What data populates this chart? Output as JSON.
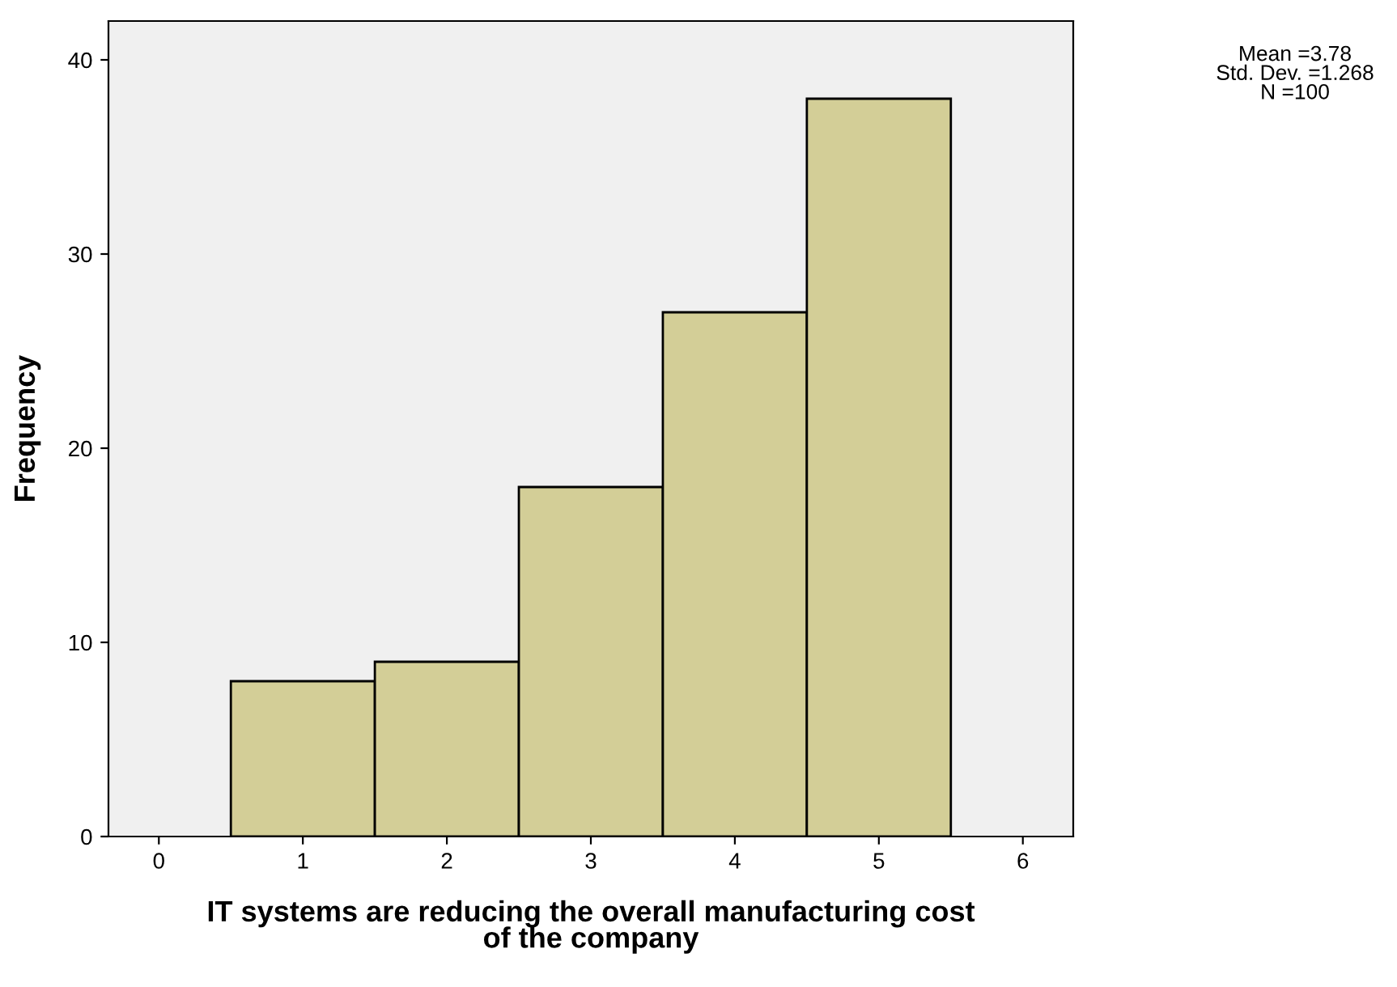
{
  "chart_data": {
    "type": "histogram",
    "xlabel": "IT systems are reducing the overall manufacturing cost\nof the company",
    "ylabel": "Frequency",
    "bins": [
      0.5,
      1.5,
      2.5,
      3.5,
      4.5,
      5.5
    ],
    "values": [
      8,
      9,
      18,
      27,
      38
    ],
    "color": "#d3ce97",
    "xlim": [
      -0.35,
      6.35
    ],
    "ylim": [
      0,
      42
    ],
    "xticks": [
      0,
      1,
      2,
      3,
      4,
      5,
      6
    ],
    "yticks": [
      0,
      10,
      20,
      30,
      40
    ],
    "annotations": [
      "Mean =3.78\nStd. Dev. =1.268\nN =100"
    ]
  }
}
